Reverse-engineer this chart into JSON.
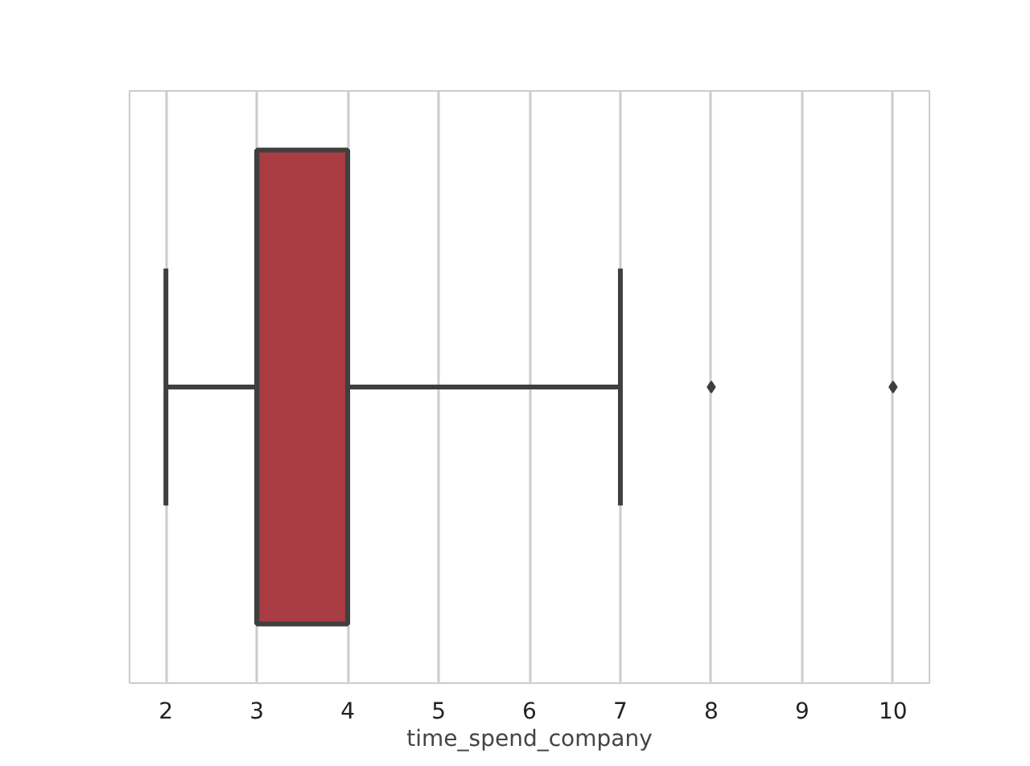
{
  "chart_data": {
    "type": "box",
    "orientation": "horizontal",
    "xlabel": "time_spend_company",
    "categories": [
      null
    ],
    "boxes": [
      {
        "low": 2,
        "q1": 3,
        "median": 3,
        "q3": 4,
        "high": 7,
        "outliers": [
          8,
          10
        ]
      }
    ],
    "color": "#a83c42",
    "xlim": [
      1.6,
      10.4
    ],
    "xticks": [
      2,
      3,
      4,
      5,
      6,
      7,
      8,
      9,
      10
    ],
    "grid": "x",
    "marker": "diamond"
  }
}
